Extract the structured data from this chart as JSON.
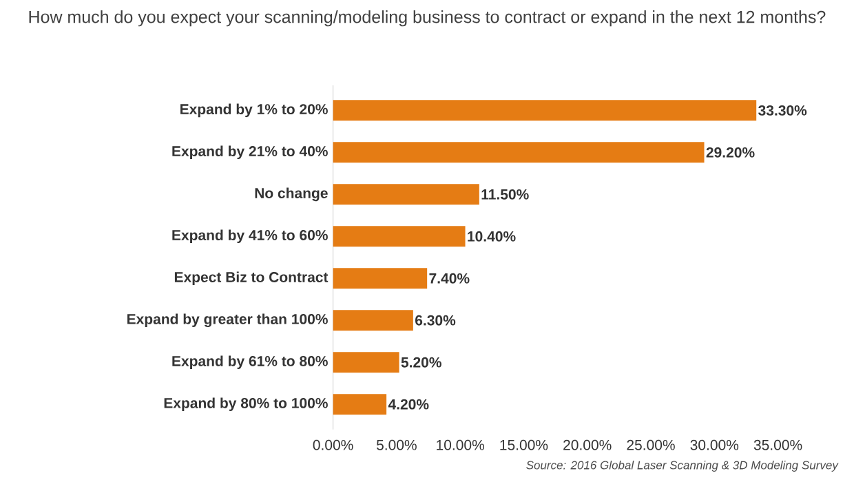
{
  "chart_data": {
    "type": "bar",
    "orientation": "horizontal",
    "title": "How much do you expect your scanning/modeling business to contract or expand in the next 12 months?",
    "categories": [
      "Expand by 1% to 20%",
      "Expand by 21% to 40%",
      "No change",
      "Expand by 41% to 60%",
      "Expect Biz to Contract",
      "Expand by greater than 100%",
      "Expand by 61% to 80%",
      "Expand by 80% to 100%"
    ],
    "values": [
      33.3,
      29.2,
      11.5,
      10.4,
      7.4,
      6.3,
      5.2,
      4.2
    ],
    "value_labels": [
      "33.30%",
      "29.20%",
      "11.50%",
      "10.40%",
      "7.40%",
      "6.30%",
      "5.20%",
      "4.20%"
    ],
    "color": "#e57c14",
    "xlim": [
      0,
      35
    ],
    "xticks": [
      {
        "value": 0,
        "label": "0.00%"
      },
      {
        "value": 5,
        "label": "5.00%"
      },
      {
        "value": 10,
        "label": "10.00%"
      },
      {
        "value": 15,
        "label": "15.00%"
      },
      {
        "value": 20,
        "label": "20.00%"
      },
      {
        "value": 25,
        "label": "25.00%"
      },
      {
        "value": 30,
        "label": "30.00%"
      },
      {
        "value": 35,
        "label": "35.00%"
      }
    ],
    "annotations": [
      "Source: 2016 Global Laser Scanning & 3D Modeling Survey"
    ]
  }
}
